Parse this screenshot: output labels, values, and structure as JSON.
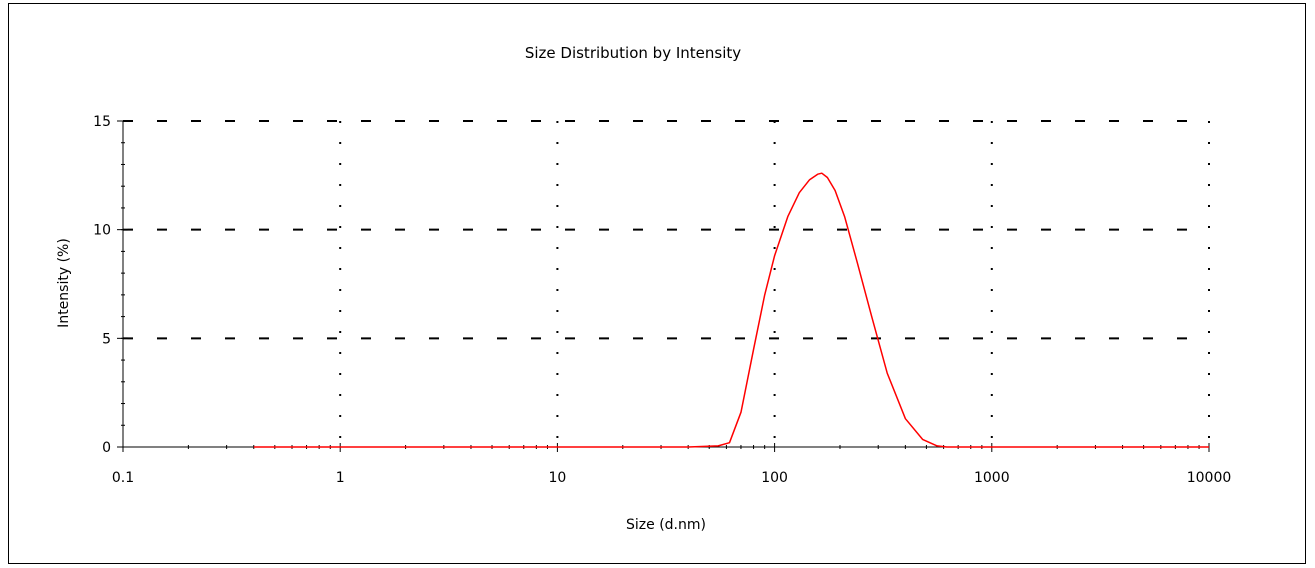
{
  "chart_data": {
    "type": "line",
    "title": "Size Distribution by Intensity",
    "xlabel": "Size (d.nm)",
    "ylabel": "Intensity (%)",
    "x_scale": "log",
    "xlim": [
      0.1,
      10000
    ],
    "ylim": [
      0,
      15
    ],
    "x_ticks": [
      0.1,
      1,
      10,
      100,
      1000,
      10000
    ],
    "x_tick_labels": [
      "0.1",
      "1",
      "10",
      "100",
      "1000",
      "10000"
    ],
    "y_ticks": [
      0,
      5,
      10,
      15
    ],
    "y_tick_labels": [
      "0",
      "5",
      "10",
      "15"
    ],
    "grid": true,
    "series": [
      {
        "color": "#ff0000",
        "x": [
          0.4,
          1,
          10,
          40,
          55,
          62,
          70,
          80,
          90,
          100,
          115,
          130,
          145,
          158,
          165,
          175,
          190,
          210,
          240,
          280,
          330,
          400,
          480,
          560,
          620,
          700,
          1000,
          5000,
          10000
        ],
        "y": [
          0,
          0,
          0,
          0,
          0.05,
          0.2,
          1.6,
          4.5,
          7.0,
          8.8,
          10.6,
          11.7,
          12.3,
          12.55,
          12.6,
          12.4,
          11.8,
          10.6,
          8.5,
          6.0,
          3.4,
          1.3,
          0.35,
          0.05,
          0,
          0,
          0,
          0,
          0
        ]
      }
    ]
  }
}
